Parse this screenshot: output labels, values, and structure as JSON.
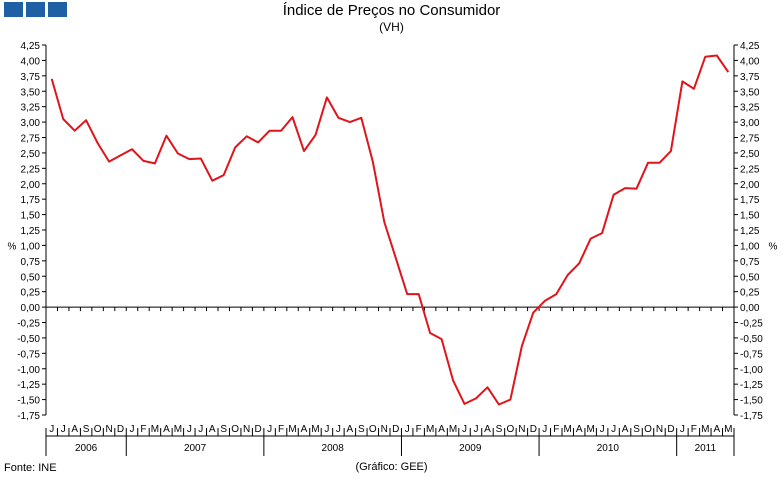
{
  "header": {
    "title": "Índice de Preços no Consumidor",
    "subtitle": "(VH)"
  },
  "footer": {
    "source": "Fonte: INE",
    "credit": "(Gráfico: GEE)"
  },
  "colors": {
    "line": "#e0141b",
    "logo": "#1f5fa6"
  },
  "chart_data": {
    "type": "line",
    "title": "Índice de Preços no Consumidor",
    "subtitle": "(VH)",
    "ylabel_left": "%",
    "ylabel_right": "%",
    "ylim": [
      -1.75,
      4.25
    ],
    "yticks": [
      4.25,
      4.0,
      3.75,
      3.5,
      3.25,
      3.0,
      2.75,
      2.5,
      2.25,
      2.0,
      1.75,
      1.5,
      1.25,
      1.0,
      0.75,
      0.5,
      0.25,
      0.0,
      -0.25,
      -0.5,
      -0.75,
      -1.0,
      -1.25,
      -1.5,
      -1.75
    ],
    "ytick_labels": [
      "4,25",
      "4,00",
      "3,75",
      "3,50",
      "3,25",
      "3,00",
      "2,75",
      "2,50",
      "2,25",
      "2,00",
      "1,75",
      "1,50",
      "1,25",
      "1,00",
      "0,75",
      "0,50",
      "0,25",
      "0,00",
      "-0,25",
      "-0,50",
      "-0,75",
      "-1,00",
      "-1,25",
      "-1,50",
      "-1,75"
    ],
    "grid": false,
    "month_labels": [
      "J",
      "J",
      "A",
      "S",
      "O",
      "N",
      "D",
      "J",
      "F",
      "M",
      "A",
      "M",
      "J",
      "J",
      "A",
      "S",
      "O",
      "N",
      "D",
      "J",
      "F",
      "M",
      "A",
      "M",
      "J",
      "J",
      "A",
      "S",
      "O",
      "N",
      "D",
      "J",
      "F",
      "M",
      "A",
      "M",
      "J",
      "J",
      "A",
      "S",
      "O",
      "N",
      "D",
      "J",
      "F",
      "M",
      "A",
      "M",
      "J",
      "J",
      "A",
      "S",
      "O",
      "N",
      "D",
      "J",
      "F",
      "M",
      "A",
      "M"
    ],
    "years": [
      {
        "label": "2006",
        "start": 0,
        "count": 7
      },
      {
        "label": "2007",
        "start": 7,
        "count": 12
      },
      {
        "label": "2008",
        "start": 19,
        "count": 12
      },
      {
        "label": "2009",
        "start": 31,
        "count": 12
      },
      {
        "label": "2010",
        "start": 43,
        "count": 12
      },
      {
        "label": "2011",
        "start": 55,
        "count": 5
      }
    ],
    "series": [
      {
        "values": [
          3.7,
          3.05,
          2.86,
          3.03,
          2.66,
          2.36,
          2.46,
          2.56,
          2.37,
          2.33,
          2.78,
          2.49,
          2.4,
          2.41,
          2.05,
          2.14,
          2.59,
          2.77,
          2.67,
          2.86,
          2.86,
          3.08,
          2.53,
          2.79,
          3.4,
          3.07,
          3.0,
          3.07,
          2.36,
          1.38,
          0.8,
          0.21,
          0.21,
          -0.42,
          -0.52,
          -1.19,
          -1.57,
          -1.48,
          -1.3,
          -1.58,
          -1.5,
          -0.63,
          -0.09,
          0.1,
          0.21,
          0.52,
          0.71,
          1.11,
          1.2,
          1.82,
          1.93,
          1.92,
          2.34,
          2.34,
          2.53,
          3.66,
          3.54,
          4.06,
          4.08,
          3.81
        ]
      }
    ]
  }
}
